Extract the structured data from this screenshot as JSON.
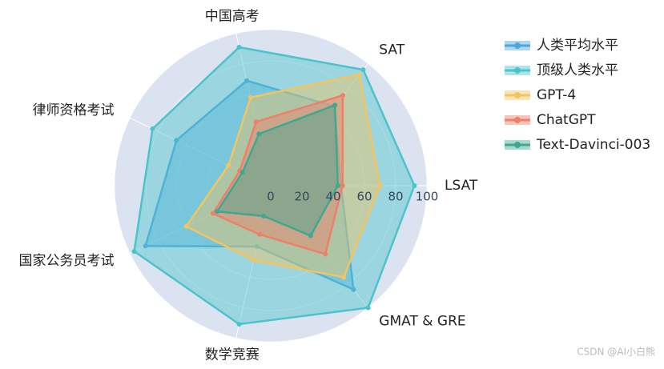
{
  "chart_data": {
    "type": "radar",
    "categories": [
      "LSAT",
      "SAT",
      "中国高考",
      "律师资格考试",
      "国家公务员考试",
      "数学竞赛",
      "GMAT & GRE"
    ],
    "rlim": [
      0,
      100
    ],
    "rticks": [
      0,
      20,
      40,
      60,
      80,
      100
    ],
    "legend": "right",
    "series": [
      {
        "name": "人类平均水平",
        "color": "#4ea6df",
        "values": [
          45,
          65,
          69,
          67,
          89,
          40,
          85
        ]
      },
      {
        "name": "顶级人类水平",
        "color": "#4cc3cc",
        "values": [
          92,
          95,
          91,
          84,
          97,
          91,
          100
        ]
      },
      {
        "name": "GPT-4",
        "color": "#f2c462",
        "values": [
          70,
          91,
          58,
          30,
          60,
          49,
          75
        ]
      },
      {
        "name": "ChatGPT",
        "color": "#ef7f68",
        "values": [
          46,
          74,
          42,
          22,
          41,
          32,
          56
        ]
      },
      {
        "name": "Text-Davinci-003",
        "color": "#3ea892",
        "values": [
          43,
          66,
          34,
          20,
          38,
          20,
          41
        ]
      }
    ]
  },
  "watermark": "CSDN @AI小白熊"
}
